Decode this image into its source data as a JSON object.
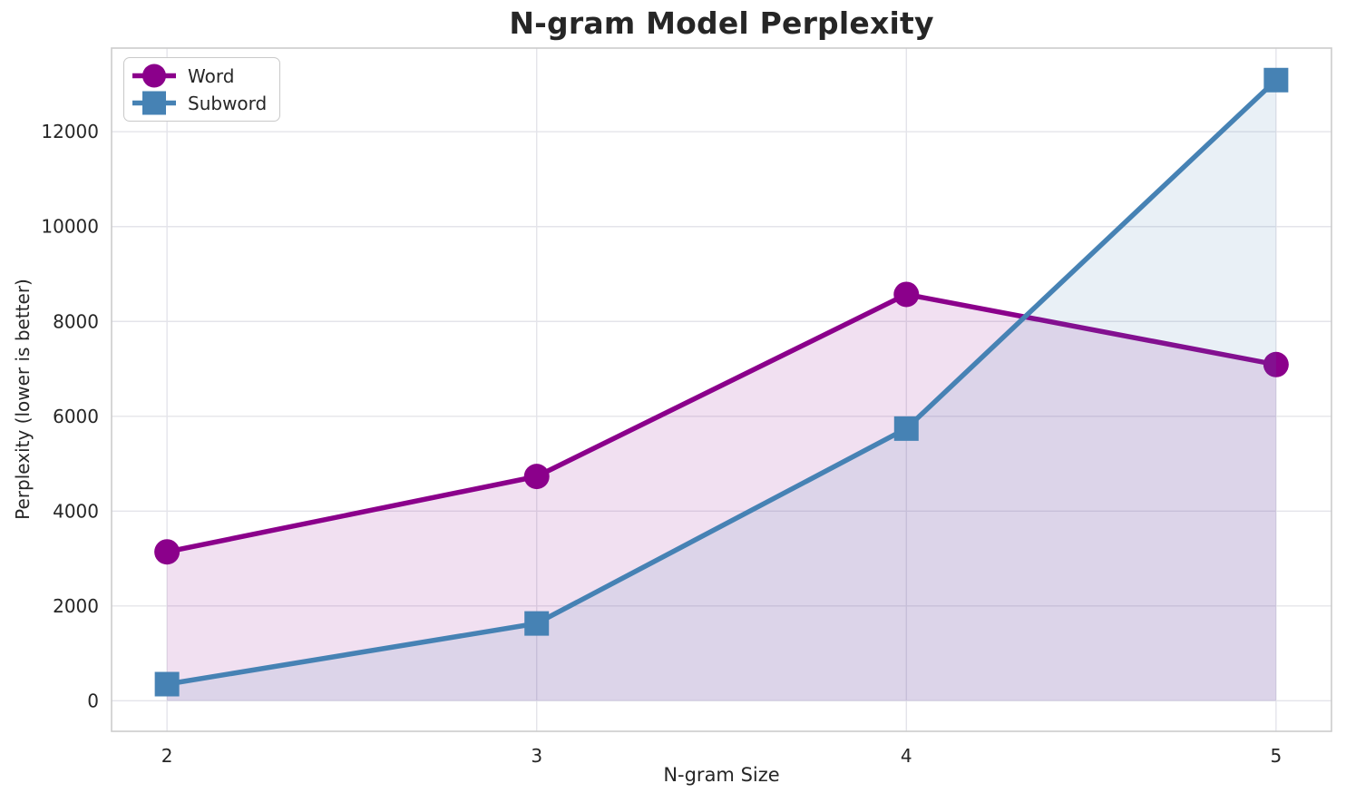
{
  "chart_data": {
    "type": "line",
    "title": "N-gram Model Perplexity",
    "xlabel": "N-gram Size",
    "ylabel": "Perplexity (lower is better)",
    "x": [
      2,
      3,
      4,
      5
    ],
    "series": [
      {
        "name": "Word",
        "marker": "circle",
        "color": "#8B008B",
        "values": [
          3140,
          4730,
          8570,
          7090
        ]
      },
      {
        "name": "Subword",
        "marker": "square",
        "color": "#4682B4",
        "values": [
          350,
          1630,
          5740,
          13090
        ]
      }
    ],
    "xticks": [
      2,
      3,
      4,
      5
    ],
    "yticks": [
      0,
      2000,
      4000,
      6000,
      8000,
      10000,
      12000
    ],
    "xlim": [
      1.85,
      5.15
    ],
    "ylim": [
      -645,
      13765
    ],
    "grid": true,
    "fill_to_zero": true,
    "fill_opacity": 0.12,
    "legend_position": "upper-left",
    "colors": {
      "background": "#ffffff",
      "grid": "#e4e4ea",
      "spine": "#cccccc",
      "text": "#262626"
    }
  }
}
